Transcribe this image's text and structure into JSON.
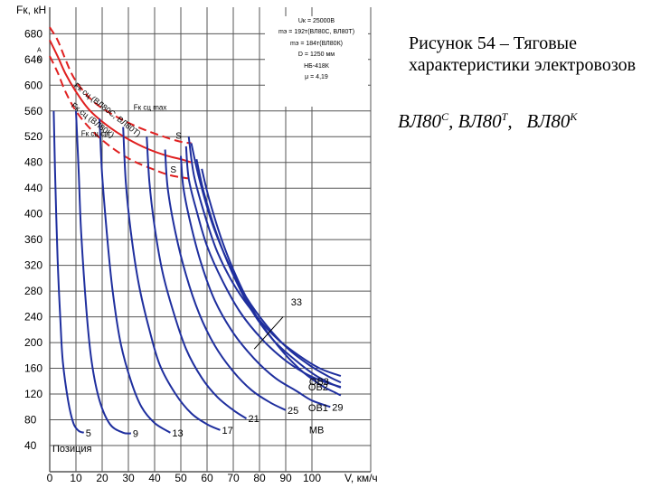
{
  "caption": {
    "text": "Рисунок 54 – Тяговые характеристики электровозов",
    "formula": {
      "loco1": "ВЛ80",
      "sup1": "С",
      "sep1": ",",
      "loco2": "ВЛ80",
      "sup2": "Т",
      "sep2": ",",
      "loco3": "ВЛ80",
      "sup3": "К"
    }
  },
  "info_box": {
    "lines": [
      "Uк = 25000В",
      "mэ = 192т(ВЛ80С, ВЛ80Т)",
      "mэ = 184т(ВЛ80К)",
      "D = 1250 мм",
      "НБ-418К",
      "μ = 4,19"
    ]
  },
  "colors": {
    "curves": "#1f2f9e",
    "limits": "#e02020",
    "grid": "#555555",
    "text": "#000000"
  },
  "chart_data": {
    "type": "line",
    "ylabel": "Fк, кН",
    "xlabel": "V, км/ч",
    "xlim": [
      0,
      110
    ],
    "ylim": [
      20,
      700
    ],
    "x_ticks": [
      "0",
      "10",
      "20",
      "30",
      "40",
      "50",
      "60",
      "70",
      "80",
      "90",
      "100"
    ],
    "y_ticks": [
      "40",
      "80",
      "120",
      "160",
      "200",
      "240",
      "280",
      "320",
      "360",
      "400",
      "440",
      "480",
      "520",
      "560",
      "600",
      "640",
      "680"
    ],
    "grid": true,
    "series": [
      {
        "name": "5",
        "points": [
          [
            1.5,
            560
          ],
          [
            2,
            470
          ],
          [
            3,
            330
          ],
          [
            4,
            240
          ],
          [
            5,
            170
          ],
          [
            7,
            110
          ],
          [
            9,
            75
          ],
          [
            11,
            63
          ],
          [
            13,
            60
          ]
        ]
      },
      {
        "name": "9",
        "points": [
          [
            10,
            560
          ],
          [
            11,
            470
          ],
          [
            12,
            370
          ],
          [
            14,
            250
          ],
          [
            16,
            170
          ],
          [
            19,
            110
          ],
          [
            23,
            73
          ],
          [
            28,
            60
          ],
          [
            31,
            59
          ]
        ]
      },
      {
        "name": "13",
        "points": [
          [
            19,
            548
          ],
          [
            20,
            460
          ],
          [
            22,
            360
          ],
          [
            24,
            280
          ],
          [
            27,
            200
          ],
          [
            31,
            140
          ],
          [
            35,
            100
          ],
          [
            40,
            75
          ],
          [
            46,
            60
          ]
        ]
      },
      {
        "name": "17",
        "points": [
          [
            28,
            535
          ],
          [
            29,
            450
          ],
          [
            31,
            370
          ],
          [
            34,
            290
          ],
          [
            38,
            220
          ],
          [
            42,
            165
          ],
          [
            48,
            120
          ],
          [
            54,
            90
          ],
          [
            60,
            73
          ],
          [
            65,
            64
          ]
        ]
      },
      {
        "name": "21",
        "points": [
          [
            37,
            520
          ],
          [
            38,
            450
          ],
          [
            40,
            380
          ],
          [
            43,
            310
          ],
          [
            47,
            250
          ],
          [
            52,
            190
          ],
          [
            58,
            145
          ],
          [
            64,
            115
          ],
          [
            70,
            95
          ],
          [
            75,
            82
          ]
        ]
      },
      {
        "name": "25",
        "points": [
          [
            44,
            500
          ],
          [
            45,
            440
          ],
          [
            48,
            370
          ],
          [
            52,
            305
          ],
          [
            57,
            245
          ],
          [
            63,
            195
          ],
          [
            70,
            155
          ],
          [
            77,
            126
          ],
          [
            84,
            107
          ],
          [
            90,
            95
          ]
        ]
      },
      {
        "name": "29",
        "points": [
          [
            50,
            490
          ],
          [
            51,
            440
          ],
          [
            54,
            380
          ],
          [
            58,
            320
          ],
          [
            63,
            265
          ],
          [
            70,
            215
          ],
          [
            78,
            175
          ],
          [
            86,
            145
          ],
          [
            94,
            125
          ],
          [
            100,
            110
          ],
          [
            107,
            100
          ]
        ]
      },
      {
        "name": "33",
        "points": [
          [
            52,
            505
          ],
          [
            53,
            455
          ],
          [
            56,
            405
          ],
          [
            60,
            350
          ],
          [
            66,
            295
          ],
          [
            73,
            245
          ],
          [
            81,
            205
          ],
          [
            89,
            175
          ],
          [
            97,
            153
          ],
          [
            104,
            140
          ],
          [
            111,
            131
          ]
        ]
      },
      {
        "name": "ОВ3",
        "points": [
          [
            53,
            520
          ],
          [
            55,
            460
          ],
          [
            59,
            400
          ],
          [
            64,
            340
          ],
          [
            71,
            285
          ],
          [
            79,
            240
          ],
          [
            87,
            205
          ],
          [
            95,
            180
          ],
          [
            103,
            160
          ],
          [
            111,
            148
          ]
        ]
      },
      {
        "name": "ОВ2",
        "points": [
          [
            54,
            510
          ],
          [
            57,
            455
          ],
          [
            62,
            385
          ],
          [
            68,
            325
          ],
          [
            75,
            270
          ],
          [
            83,
            225
          ],
          [
            91,
            190
          ],
          [
            99,
            165
          ],
          [
            106,
            148
          ],
          [
            111,
            138
          ]
        ]
      },
      {
        "name": "ОВ1",
        "points": [
          [
            56,
            485
          ],
          [
            59,
            430
          ],
          [
            64,
            365
          ],
          [
            70,
            305
          ],
          [
            77,
            250
          ],
          [
            85,
            205
          ],
          [
            93,
            175
          ],
          [
            101,
            150
          ],
          [
            108,
            135
          ],
          [
            111,
            130
          ]
        ]
      },
      {
        "name": "МВ",
        "points": [
          [
            58,
            470
          ],
          [
            61,
            420
          ],
          [
            66,
            355
          ],
          [
            72,
            295
          ],
          [
            79,
            240
          ],
          [
            87,
            195
          ],
          [
            95,
            160
          ],
          [
            103,
            135
          ],
          [
            109,
            122
          ],
          [
            111,
            118
          ]
        ]
      }
    ],
    "limit_curves": [
      {
        "style": "dashed",
        "points": [
          [
            0,
            690
          ],
          [
            3,
            670
          ],
          [
            6,
            640
          ],
          [
            9,
            613
          ],
          [
            13,
            590
          ],
          [
            18,
            570
          ],
          [
            25,
            552
          ],
          [
            33,
            536
          ],
          [
            42,
            522
          ],
          [
            50,
            512
          ],
          [
            54,
            510
          ]
        ]
      },
      {
        "style": "solid",
        "points": [
          [
            0,
            670
          ],
          [
            3,
            645
          ],
          [
            6,
            618
          ],
          [
            10,
            590
          ],
          [
            15,
            562
          ],
          [
            22,
            537
          ],
          [
            30,
            516
          ],
          [
            38,
            500
          ],
          [
            45,
            490
          ],
          [
            50,
            485
          ],
          [
            54,
            480
          ]
        ]
      },
      {
        "style": "dashed",
        "points": [
          [
            0,
            645
          ],
          [
            3,
            620
          ],
          [
            6,
            590
          ],
          [
            10,
            560
          ],
          [
            16,
            530
          ],
          [
            23,
            505
          ],
          [
            31,
            484
          ],
          [
            39,
            470
          ],
          [
            46,
            460
          ],
          [
            53,
            455
          ]
        ]
      }
    ],
    "annotations": [
      "Fк сц max",
      "Fк сц ср",
      "Fк сц (ВЛ80С, ВЛ80Т)",
      "Fк сц (ВЛ80К)",
      "S",
      "S",
      "А",
      "А",
      "Позиция"
    ]
  }
}
